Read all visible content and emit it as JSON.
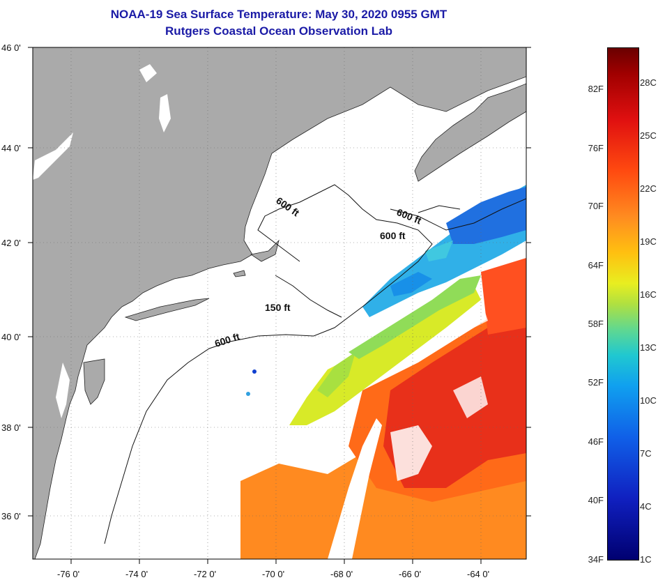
{
  "title": {
    "line1": "NOAA-19 Sea Surface Temperature:  May 30, 2020 0955 GMT",
    "line2": "Rutgers Coastal Ocean Observation Lab"
  },
  "axes": {
    "lat_labels": [
      "46 0'",
      "44 0'",
      "42 0'",
      "40 0'",
      "38 0'",
      "36 0'"
    ],
    "lon_labels": [
      "-76 0'",
      "-74 0'",
      "-72 0'",
      "-70 0'",
      "-68 0'",
      "-66 0'",
      "-64 0'"
    ]
  },
  "contours": [
    "600 ft",
    "600 ft",
    "600 ft",
    "150 ft",
    "600 ft"
  ],
  "colorbar": {
    "fahrenheit": [
      "82F",
      "76F",
      "70F",
      "64F",
      "58F",
      "52F",
      "46F",
      "40F",
      "34F"
    ],
    "celsius": [
      "28C",
      "25C",
      "22C",
      "19C",
      "16C",
      "13C",
      "10C",
      "7C",
      "4C",
      "1C"
    ]
  },
  "colors": {
    "land": "#aaaaaa",
    "title": "#1a1aa6",
    "warm": "#ff7a1a",
    "hot": "#e8201a",
    "cool": "#30b8e8",
    "cold": "#2060e0",
    "mild": "#a8e040"
  }
}
